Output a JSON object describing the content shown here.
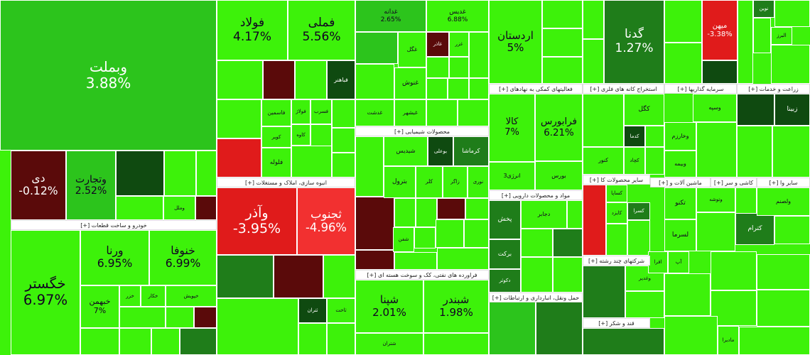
{
  "tiles": [
    {
      "name": "وبملت",
      "change": "3.88%"
    },
    {
      "name": "دی",
      "change": "-0.12%"
    },
    {
      "name": "وتجارت",
      "change": "2.52%"
    },
    {
      "name": "وملل"
    },
    {
      "name": "خگستر",
      "change": "6.97%"
    },
    {
      "name": "ورنا",
      "change": "6.95%"
    },
    {
      "name": "خنوفا",
      "change": "6.99%"
    },
    {
      "name": "خبهمن",
      "change": "7%"
    },
    {
      "name": "خزر"
    },
    {
      "name": "خکار"
    },
    {
      "name": "خپویش"
    },
    {
      "name": "فولاد",
      "change": "4.17%"
    },
    {
      "name": "فملی",
      "change": "5.56%"
    },
    {
      "name": "فباهنر"
    },
    {
      "name": "فاسمین"
    },
    {
      "name": "فولاژ"
    },
    {
      "name": "فسرب"
    },
    {
      "name": "کاوه"
    },
    {
      "name": "کویر"
    },
    {
      "name": "فلوله"
    },
    {
      "name": "وآذر",
      "change": "-3.95%"
    },
    {
      "name": "ثجنوب",
      "change": "-4.96%"
    },
    {
      "name": "ثتران"
    },
    {
      "name": "ثاخت"
    },
    {
      "name": "غدانه",
      "change": "2.65%"
    },
    {
      "name": "غدیس",
      "change": "6.88%"
    },
    {
      "name": "غگل"
    },
    {
      "name": "غاذر"
    },
    {
      "name": "غزر"
    },
    {
      "name": "غنوش"
    },
    {
      "name": "غدشت"
    },
    {
      "name": "غبشهر"
    },
    {
      "name": "شیدیس"
    },
    {
      "name": "بوعلی"
    },
    {
      "name": "کرماشا"
    },
    {
      "name": "بترول"
    },
    {
      "name": "کلر"
    },
    {
      "name": "زاگر"
    },
    {
      "name": "نوری"
    },
    {
      "name": "شفن"
    },
    {
      "name": "شپنا",
      "change": "2.01%"
    },
    {
      "name": "شبندر",
      "change": "1.98%"
    },
    {
      "name": "شتران"
    },
    {
      "name": "اردستان",
      "change": "5%"
    },
    {
      "name": "کالا",
      "change": "7%"
    },
    {
      "name": "فرابورس",
      "change": "6.21%"
    },
    {
      "name": "انرژی3"
    },
    {
      "name": "بورس"
    },
    {
      "name": "دجابر"
    },
    {
      "name": "پخش"
    },
    {
      "name": "برکت"
    },
    {
      "name": "دکوثر"
    },
    {
      "name": "گدنا",
      "change": "1.27%"
    },
    {
      "name": "کگل"
    },
    {
      "name": "کدما"
    },
    {
      "name": "کچاد"
    },
    {
      "name": "کنور"
    },
    {
      "name": "میهن",
      "change": "-3.38%"
    },
    {
      "name": "نوین"
    },
    {
      "name": "البرز"
    },
    {
      "name": "وسپه"
    },
    {
      "name": "وخارزم"
    },
    {
      "name": "وبیمه"
    },
    {
      "name": "زبینا"
    },
    {
      "name": "تکنو"
    },
    {
      "name": "وتوشه"
    },
    {
      "name": "لسرما"
    },
    {
      "name": "کترام"
    },
    {
      "name": "ولصنم"
    },
    {
      "name": "کساپا"
    },
    {
      "name": "کسرا"
    },
    {
      "name": "کایزد"
    },
    {
      "name": "وغدیر"
    },
    {
      "name": "آپ"
    },
    {
      "name": "افرا"
    },
    {
      "name": "مادیرا"
    }
  ],
  "headers": [
    "خودرو و ساخت قطعات [+]",
    "انبوه سازی، املاک و مستغلات [+]",
    "محصولات شیمیایی [+]",
    "فراورده های نفتی، کک و سوخت هسته ای [+]",
    "فعالیتهای کمکی به نهادهای [+]",
    "مواد و محصولات دارویی [+]",
    "حمل ونقل، انبارداری و ارتباطات [+]",
    "استخراج کانه های فلزی [+]",
    "سرمایه گذاریها [+]",
    "زراعت و خدمات [+]",
    "سایر محصولات کا [+]",
    "ماشین آلات و [+]",
    "کاشی و سر [+]",
    "سایر وا [+]",
    "شرکتهای چند رشته [+]",
    "قند و شکر [+]"
  ]
}
